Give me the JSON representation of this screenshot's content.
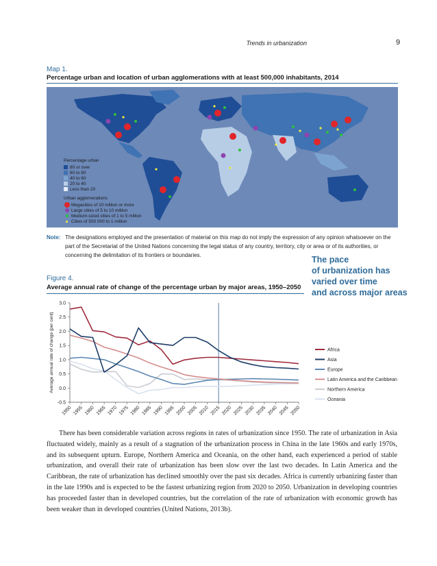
{
  "header": {
    "running_title": "Trends in urbanization",
    "page_number": "9"
  },
  "map": {
    "label": "Map 1.",
    "title": "Percentage urban and location of urban agglomerations with at least 500,000 inhabitants, 2014",
    "legend_pct_title": "Percentage urban",
    "legend_pct_items": [
      {
        "label": "80 or over",
        "color": "#1f4e96"
      },
      {
        "label": "60 to 80",
        "color": "#3f73b3"
      },
      {
        "label": "40 to 60",
        "color": "#7da4d0"
      },
      {
        "label": "20 to 40",
        "color": "#b7cde6"
      },
      {
        "label": "Less than 20",
        "color": "#e4edf7"
      }
    ],
    "legend_agg_title": "Urban agglomerations",
    "legend_agg_items": [
      {
        "label": "Megacities of 10 million or more",
        "color": "#e0262b"
      },
      {
        "label": "Large cities of 5 to 10 million",
        "color": "#8e44ad"
      },
      {
        "label": "Medium-sized cities of 1 to 5 million",
        "color": "#2fbf3c"
      },
      {
        "label": "Cities of 500 000 to 1 million",
        "color": "#f3ec3a"
      }
    ],
    "ocean_color": "#6d89b8"
  },
  "note": {
    "label": "Note:",
    "text": "The designations employed and the presentation of material on this map do not imply the expression of any opinion whatsoever on the part of the Secretariat of the United Nations concerning the legal status of any country, territory, city or area or of its authorities, or concerning the delimitation of its frontiers or boundaries."
  },
  "pullquote": {
    "line1": "The pace",
    "line2": "of urbanization has",
    "line3": "varied over time",
    "line4": "and across major areas"
  },
  "figure": {
    "label": "Figure 4.",
    "title": "Average annual rate of change of the percentage urban by major areas, 1950–2050"
  },
  "chart_data": {
    "type": "line",
    "title": "Average annual rate of change of the percentage urban by major areas, 1950–2050",
    "ylabel": "Average annual rate of change (per cent)",
    "xlabel": "",
    "ylim": [
      -0.5,
      3.0
    ],
    "yticks": [
      "3.0",
      "2.5",
      "2.0",
      "1.5",
      "1.0",
      "0.5",
      "0.0",
      "-0.5"
    ],
    "x": [
      "1950",
      "1955",
      "1960",
      "1965",
      "1970",
      "1975",
      "1980",
      "1985",
      "1990",
      "1995",
      "2000",
      "2005",
      "2010",
      "2015",
      "2020",
      "2025",
      "2030",
      "2035",
      "2040",
      "2045",
      "2050"
    ],
    "vertical_line_at": "2015",
    "grid": false,
    "legend_position": "right",
    "series": [
      {
        "name": "Africa",
        "color": "#9e2a3c",
        "values": [
          2.78,
          2.85,
          2.02,
          1.98,
          1.8,
          1.76,
          1.52,
          1.66,
          1.35,
          0.84,
          0.99,
          1.05,
          1.08,
          1.08,
          1.05,
          1.02,
          0.99,
          0.96,
          0.93,
          0.9,
          0.86
        ]
      },
      {
        "name": "Asia",
        "color": "#1c3c66",
        "values": [
          2.08,
          1.82,
          1.78,
          0.56,
          0.82,
          1.14,
          2.12,
          1.6,
          1.55,
          1.5,
          1.78,
          1.78,
          1.62,
          1.32,
          1.08,
          0.92,
          0.82,
          0.75,
          0.72,
          0.7,
          0.67
        ]
      },
      {
        "name": "Europe",
        "color": "#5d87b3",
        "values": [
          1.05,
          1.08,
          1.04,
          1.0,
          0.85,
          0.72,
          0.58,
          0.42,
          0.3,
          0.16,
          0.13,
          0.2,
          0.27,
          0.3,
          0.31,
          0.32,
          0.33,
          0.32,
          0.31,
          0.3,
          0.28
        ]
      },
      {
        "name": "Latin America and the Caribbean",
        "color": "#d48c8c",
        "values": [
          1.86,
          1.76,
          1.64,
          1.44,
          1.33,
          1.2,
          1.06,
          0.88,
          0.74,
          0.62,
          0.47,
          0.4,
          0.36,
          0.32,
          0.29,
          0.26,
          0.23,
          0.21,
          0.2,
          0.19,
          0.18
        ]
      },
      {
        "name": "Northern America",
        "color": "#c9cbd1",
        "values": [
          0.85,
          0.66,
          0.56,
          0.58,
          0.58,
          0.08,
          0.02,
          0.16,
          0.5,
          0.49,
          0.3,
          0.32,
          0.3,
          0.3,
          0.27,
          0.24,
          0.21,
          0.19,
          0.18,
          0.17,
          0.16
        ]
      },
      {
        "name": "Oceania",
        "color": "#d7e1ee",
        "values": [
          0.94,
          0.84,
          0.68,
          0.6,
          0.3,
          0.02,
          -0.2,
          -0.08,
          -0.05,
          0.02,
          0.02,
          0.05,
          0.06,
          0.05,
          0.06,
          0.08,
          0.1,
          0.12,
          0.14,
          0.15,
          0.16
        ]
      }
    ]
  },
  "body": {
    "paragraph": "There has been considerable variation across regions in rates of urbanization since 1950. The rate of urbanization in Asia fluctuated widely, mainly as a result of a stagnation of the urbanization process in China in the late 1960s and early 1970s, and its subsequent upturn. Europe, Northern America and Oceania, on the other hand, each experienced a period of stable urbanization, and overall their rate of urbanization has been slow over the last two decades. In Latin America and the Caribbean, the rate of urbanization has declined smoothly over the past six decades. Africa is currently urbanizing faster than in the late 1990s and is expected to be the fastest urbanizing region from 2020 to 2050. Urbanization in developing countries has proceeded faster than in developed countries, but the correlation of the rate of urbanization with economic growth has been weaker than in developed countries (United Nations, 2013b)."
  }
}
